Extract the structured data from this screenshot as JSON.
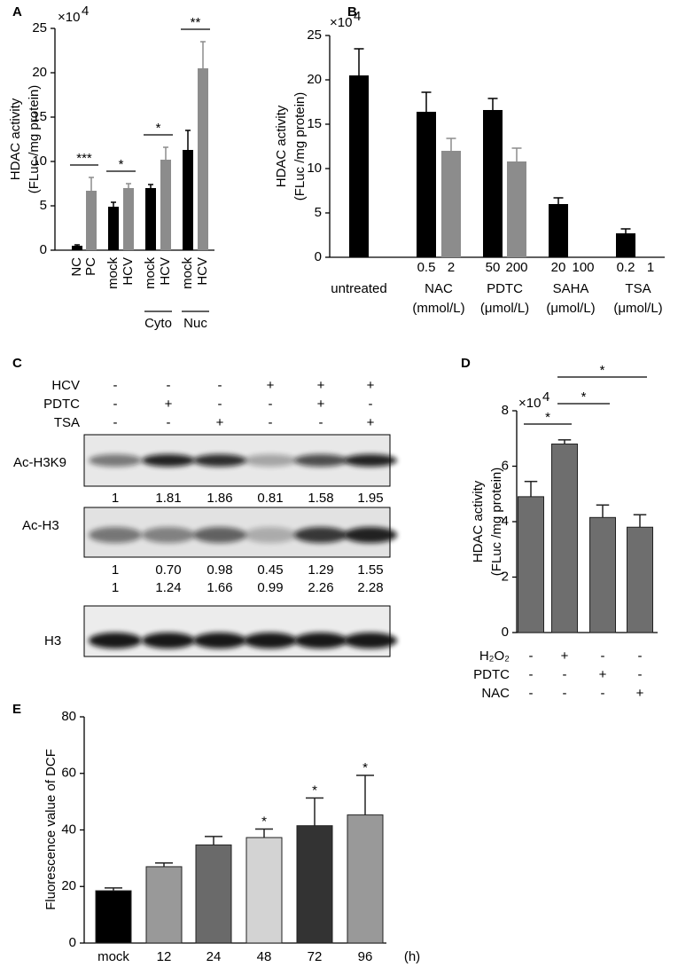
{
  "chart_data": [
    {
      "type": "bar",
      "panel_label": "A",
      "ylabel": [
        "HDAC activity",
        "(FLuc /mg protein)"
      ],
      "y_multiplier": "×10",
      "y_multiplier_exponent": "4",
      "categories": [
        "NC",
        "PC",
        "mock",
        "HCV",
        "mock",
        "HCV",
        "mock",
        "HCV"
      ],
      "groups": [
        "Cyto",
        "Nuc"
      ],
      "values": [
        0.5,
        6.7,
        4.9,
        7.0,
        7.0,
        10.2,
        11.3,
        20.5
      ],
      "errors": [
        0.1,
        1.5,
        0.5,
        0.5,
        0.4,
        1.4,
        2.2,
        3.0
      ],
      "colors": [
        "#000000",
        "#8c8c8c",
        "#000000",
        "#8c8c8c",
        "#000000",
        "#8c8c8c",
        "#000000",
        "#8c8c8c"
      ],
      "significance": [
        "***",
        "*",
        "*",
        "**"
      ],
      "ylim": [
        0,
        25
      ],
      "yticks": [
        0,
        5,
        10,
        15,
        20,
        25
      ]
    },
    {
      "type": "bar",
      "panel_label": "B",
      "ylabel": [
        "HDAC activity",
        "(FLuc /mg protein)"
      ],
      "y_multiplier": "×10",
      "y_multiplier_exponent": "4",
      "categories": [
        "untreated",
        "0.5",
        "2",
        "50",
        "200",
        "20",
        "100",
        "0.2",
        "1"
      ],
      "groups": [
        {
          "name": "NAC",
          "unit": "(mmol/L)"
        },
        {
          "name": "PDTC",
          "unit": "(μmol/L)"
        },
        {
          "name": "SAHA",
          "unit": "(μmol/L)"
        },
        {
          "name": "TSA",
          "unit": "(μmol/L)"
        }
      ],
      "values": [
        20.5,
        16.4,
        12.0,
        16.6,
        10.8,
        6.0,
        null,
        2.7,
        null
      ],
      "errors": [
        3.0,
        2.2,
        1.4,
        1.3,
        1.5,
        0.7,
        null,
        0.5,
        null
      ],
      "colors": [
        "#000000",
        "#000000",
        "#8c8c8c",
        "#000000",
        "#8c8c8c",
        "#000000",
        "#8c8c8c",
        "#000000",
        "#8c8c8c"
      ],
      "ylim": [
        0,
        25
      ],
      "yticks": [
        0,
        5,
        10,
        15,
        20,
        25
      ]
    },
    {
      "type": "bar",
      "panel_label": "D",
      "ylabel": [
        "HDAC activity",
        "(FLuc /mg protein)"
      ],
      "y_multiplier": "×10",
      "y_multiplier_exponent": "4",
      "conditions": [
        {
          "name": "H₂O₂",
          "signs": [
            "-",
            "+",
            "-",
            "-"
          ]
        },
        {
          "name": "PDTC",
          "signs": [
            "-",
            "-",
            "+",
            "-"
          ]
        },
        {
          "name": "NAC",
          "signs": [
            "-",
            "-",
            "-",
            "+"
          ]
        }
      ],
      "values": [
        4.9,
        6.8,
        4.15,
        3.8
      ],
      "errors": [
        0.55,
        0.15,
        0.45,
        0.45
      ],
      "color": "#6e6e6e",
      "significance": [
        "*",
        "*",
        "*"
      ],
      "ylim": [
        0,
        8
      ],
      "yticks": [
        0,
        2,
        4,
        6,
        8
      ]
    },
    {
      "type": "bar",
      "panel_label": "E",
      "ylabel": [
        "Fluorescence value of DCF"
      ],
      "x_label": "(h)",
      "categories": [
        "mock",
        "12",
        "24",
        "48",
        "72",
        "96"
      ],
      "values": [
        18.5,
        27.0,
        34.7,
        37.3,
        41.5,
        45.3
      ],
      "errors": [
        1.0,
        1.3,
        3.0,
        3.0,
        9.8,
        14.0
      ],
      "colors": [
        "#000000",
        "#999999",
        "#6a6a6a",
        "#d3d3d3",
        "#333333",
        "#999999"
      ],
      "significance": [
        null,
        null,
        null,
        "*",
        "*",
        "*"
      ],
      "ylim": [
        0,
        80
      ],
      "yticks": [
        0,
        20,
        40,
        60,
        80
      ]
    }
  ],
  "western_blot": {
    "panel_label": "C",
    "conditions": [
      {
        "name": "HCV",
        "signs": [
          "-",
          "-",
          "-",
          "+",
          "+",
          "+"
        ]
      },
      {
        "name": "PDTC",
        "signs": [
          "-",
          "+",
          "-",
          "-",
          "+",
          "-"
        ]
      },
      {
        "name": "TSA",
        "signs": [
          "-",
          "-",
          "+",
          "-",
          "-",
          "+"
        ]
      }
    ],
    "blots": [
      "Ac-H3K9",
      "Ac-H3",
      "H3"
    ],
    "ratio_rows": [
      [
        "1",
        "1.81",
        "1.86",
        "0.81",
        "1.58",
        "1.95"
      ],
      [
        "1",
        "0.70",
        "0.98",
        "0.45",
        "1.29",
        "1.55"
      ],
      [
        "1",
        "1.24",
        "1.66",
        "0.99",
        "2.26",
        "2.28"
      ]
    ]
  }
}
